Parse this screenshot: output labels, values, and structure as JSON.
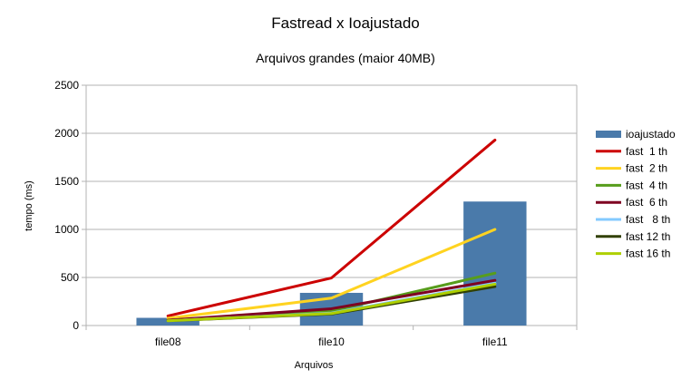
{
  "chart_data": {
    "type": "bar+line",
    "title": "Fastread x Ioajustado",
    "subtitle": "Arquivos grandes (maior 40MB)",
    "xlabel": "Arquivos",
    "ylabel": "tempo (ms)",
    "categories": [
      "file08",
      "file10",
      "file11"
    ],
    "ylim": [
      0,
      2500
    ],
    "yticks": [
      0,
      500,
      1000,
      1500,
      2000,
      2500
    ],
    "grid": "horizontal",
    "legend_position": "right",
    "series": [
      {
        "name": "ioajustado",
        "kind": "bar",
        "color": "#4a7aaa",
        "values": [
          80,
          340,
          1290
        ]
      },
      {
        "name": "fast  1 th",
        "kind": "line",
        "color": "#cc0000",
        "values": [
          100,
          495,
          1930
        ]
      },
      {
        "name": "fast  2 th",
        "kind": "line",
        "color": "#ffd320",
        "values": [
          75,
          285,
          1000
        ]
      },
      {
        "name": "fast  4 th",
        "kind": "line",
        "color": "#579d1c",
        "values": [
          55,
          150,
          545
        ]
      },
      {
        "name": "fast  6 th",
        "kind": "line",
        "color": "#7e0021",
        "values": [
          55,
          175,
          470
        ]
      },
      {
        "name": "fast   8 th",
        "kind": "line",
        "color": "#83caff",
        "values": [
          50,
          130,
          440
        ]
      },
      {
        "name": "fast 12 th",
        "kind": "line",
        "color": "#314004",
        "values": [
          50,
          120,
          405
        ]
      },
      {
        "name": "fast 16 th",
        "kind": "line",
        "color": "#aecf00",
        "values": [
          50,
          125,
          430
        ]
      }
    ]
  }
}
